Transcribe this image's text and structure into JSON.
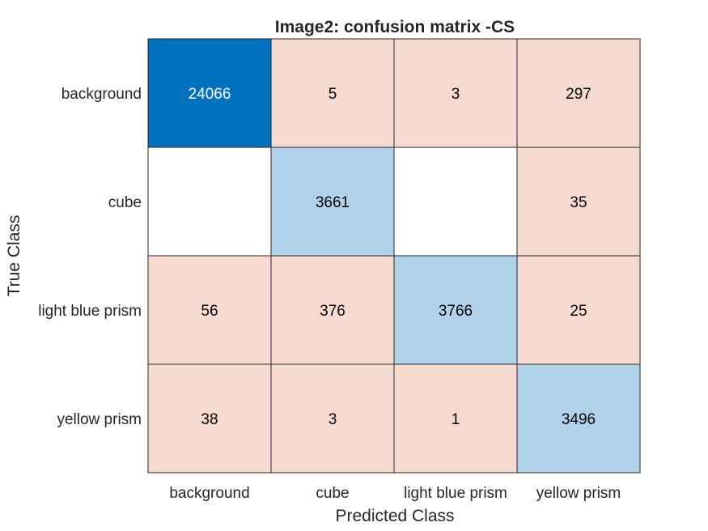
{
  "chart_data": {
    "type": "heatmap",
    "title": "Image2: confusion matrix -CS",
    "xlabel": "Predicted Class",
    "ylabel": "True Class",
    "row_labels": [
      "background",
      "cube",
      "light blue prism",
      "yellow prism"
    ],
    "col_labels": [
      "background",
      "cube",
      "light blue prism",
      "yellow prism"
    ],
    "values": [
      [
        24066,
        5,
        3,
        297
      ],
      [
        null,
        3661,
        null,
        35
      ],
      [
        56,
        376,
        3766,
        25
      ],
      [
        38,
        3,
        1,
        3496
      ]
    ],
    "colors": {
      "diagonal_max": "#0072BD",
      "diagonal": "#B0D3EB",
      "off_diagonal": "#F7DBD0",
      "empty": "#FFFFFF",
      "grid": "#262626",
      "text_dark": "#000000",
      "text_light": "#FFFFFF"
    }
  }
}
